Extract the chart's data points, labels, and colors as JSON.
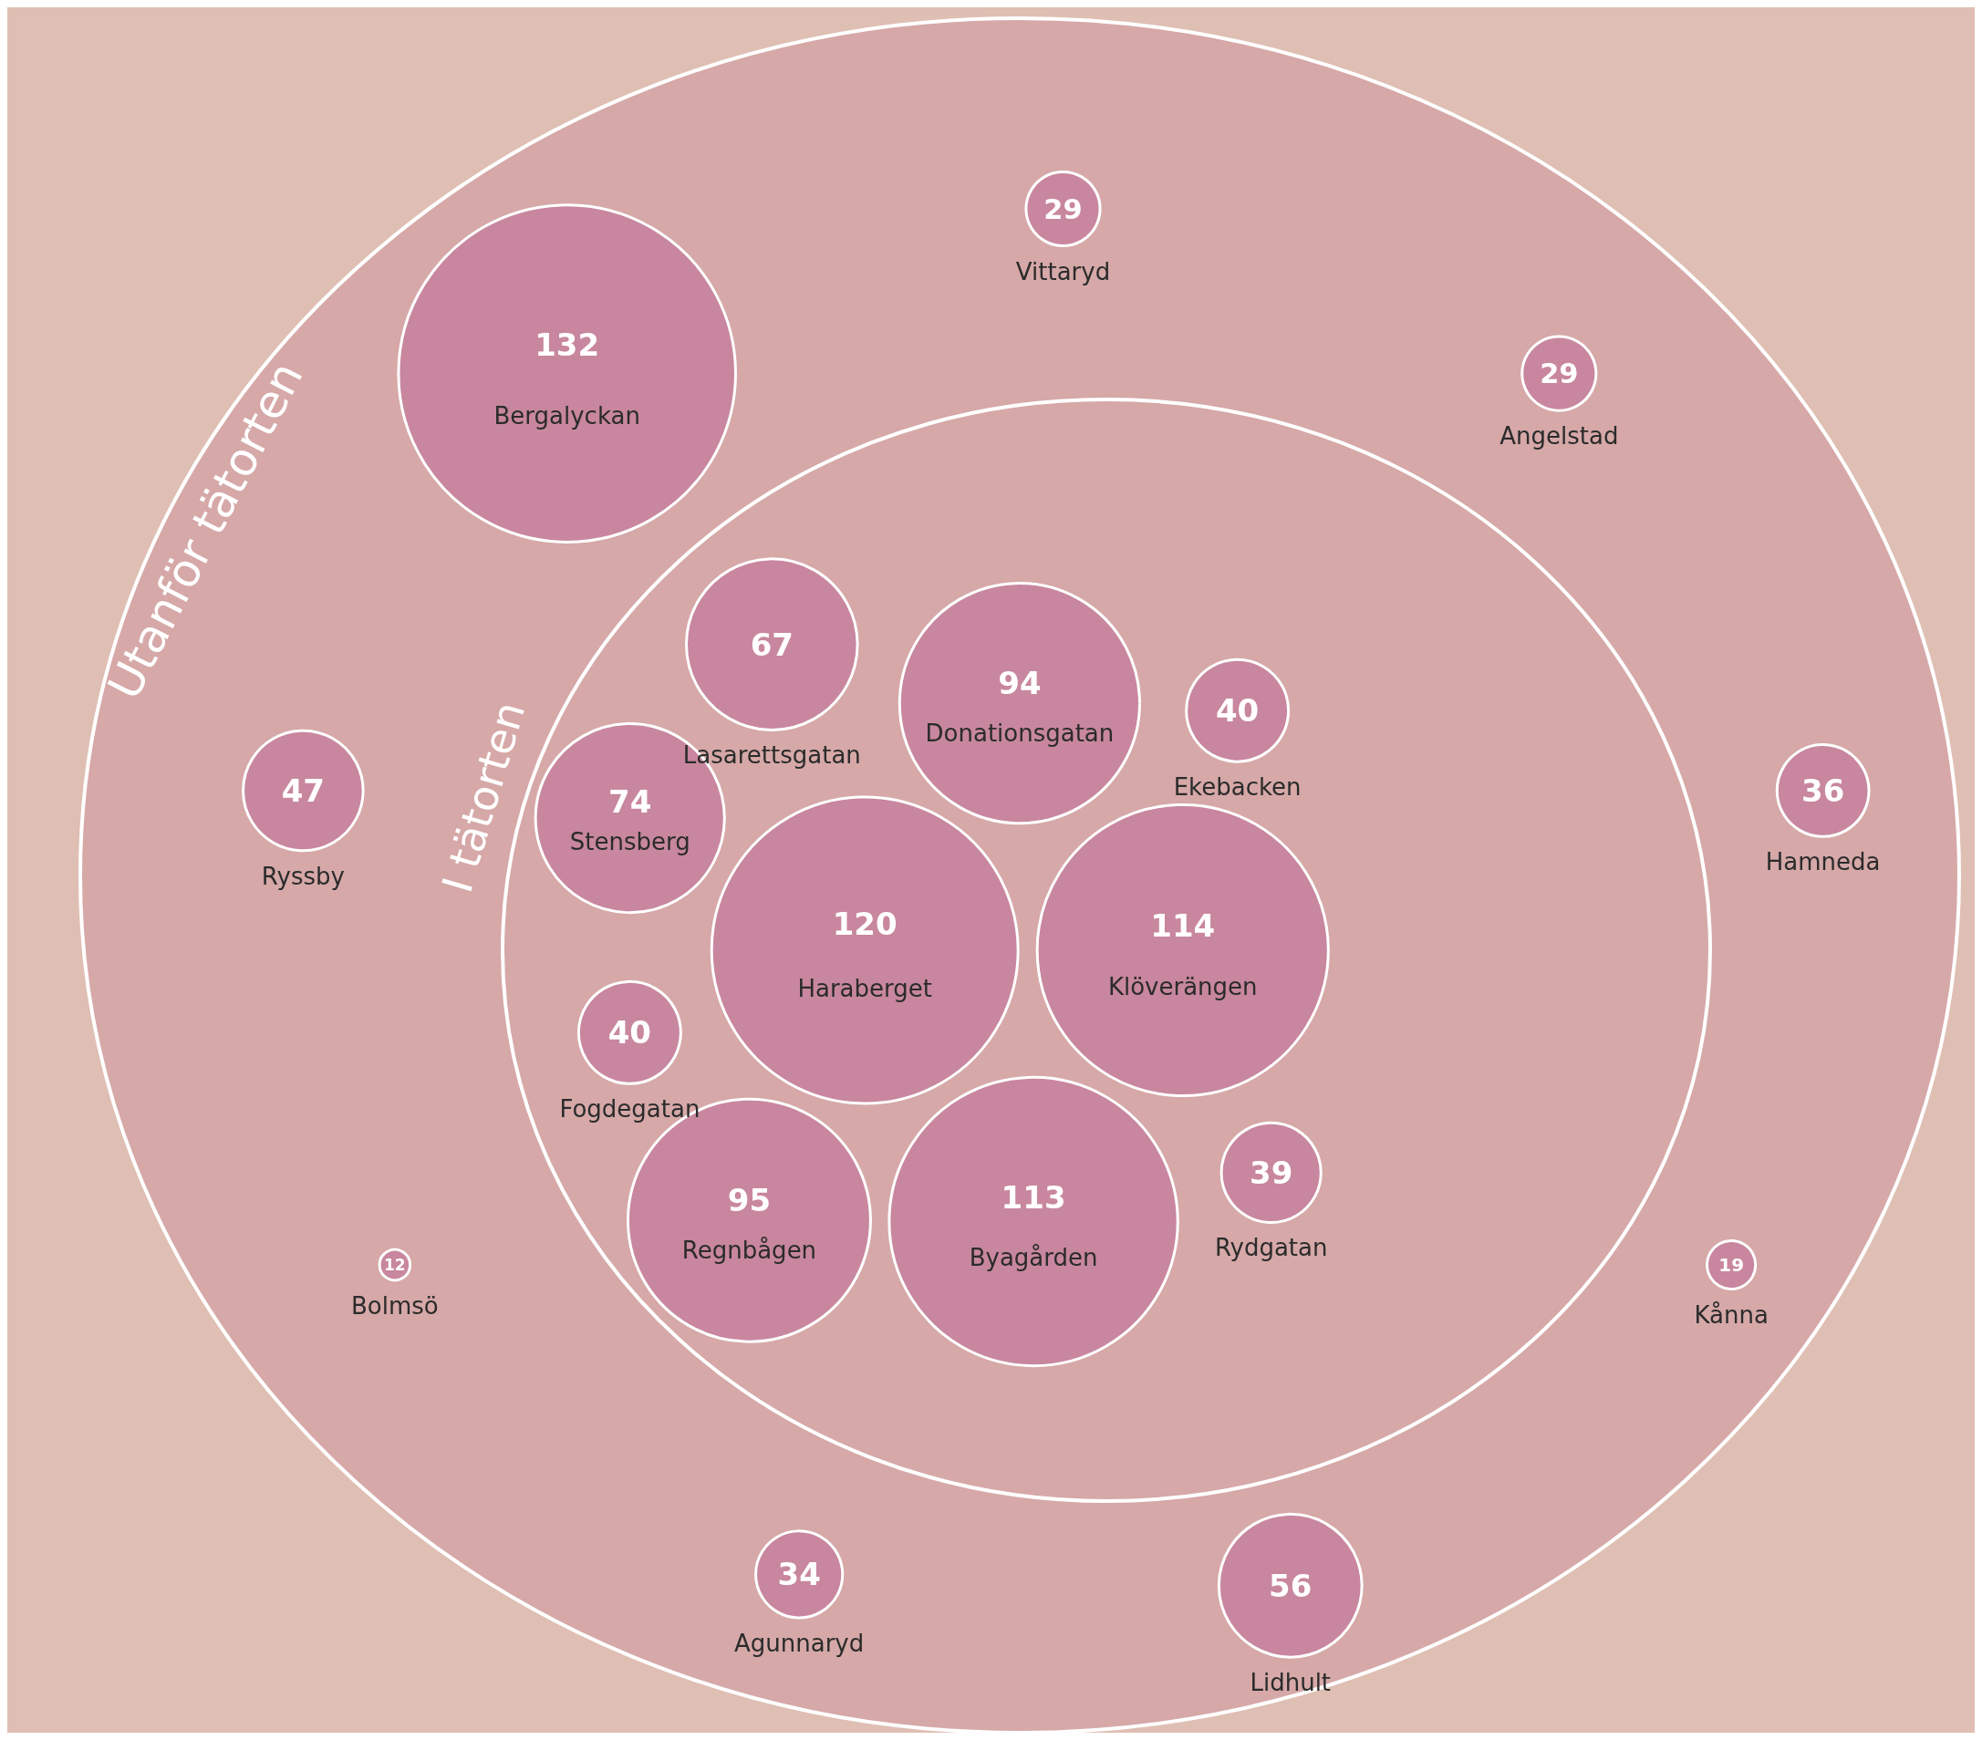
{
  "chart_data": {
    "type": "other",
    "data_labels": true,
    "categories": [
      "Haraberget",
      "Donationsgatan",
      "Byagården",
      "Regnbågen",
      "Lasarettsgatan",
      "Stensberg",
      "Fogdegatan",
      "Rydgatan",
      "Klöverängen",
      "Ekebacken",
      "Vittaryd",
      "Bergalyckan",
      "Ryssby",
      "Bolmsö",
      "Agunnaryd",
      "Lidhult",
      "Kånna",
      "Hamneda",
      "Angelstad"
    ],
    "series": [
      {
        "name": "I tätorten",
        "color": "#c8879e",
        "values": [
          120,
          94,
          113,
          95,
          67,
          74,
          40,
          39,
          114,
          40,
          null,
          null,
          null,
          null,
          null,
          null,
          null,
          null,
          null
        ]
      },
      {
        "name": "Utanför tätorten",
        "color": "#c8879e",
        "values": [
          null,
          null,
          null,
          null,
          null,
          null,
          null,
          null,
          null,
          null,
          29,
          132,
          47,
          12,
          34,
          56,
          19,
          36,
          29
        ]
      }
    ]
  }
}
